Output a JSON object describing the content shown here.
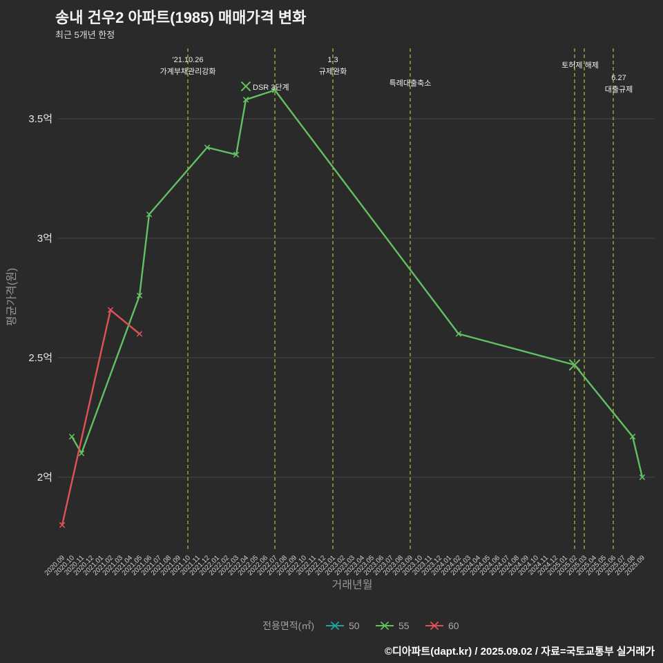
{
  "footer": {
    "credit": "©디아파트(dapt.kr) / 2025.09.02 / 자료=국토교통부 실거래가"
  },
  "chart_data": {
    "type": "line",
    "title": "송내 건우2 아파트(1985) 매매가격 변화",
    "subtitle": "최근 5개년 한정",
    "xlabel": "거래년월",
    "ylabel": "평균가격(원)",
    "ylim": [
      1.72,
      3.75
    ],
    "grid": true,
    "colors": {
      "background": "#2a2a2a",
      "grid": "#454545",
      "vline": "#b3b33c"
    },
    "yticks": [
      {
        "v": 2.0,
        "label": "2억"
      },
      {
        "v": 2.5,
        "label": "2.5억"
      },
      {
        "v": 3.0,
        "label": "3억"
      },
      {
        "v": 3.5,
        "label": "3.5억"
      }
    ],
    "x_categories": [
      "2020.09",
      "2020.10",
      "2020.11",
      "2020.12",
      "2021.01",
      "2021.02",
      "2021.03",
      "2021.04",
      "2021.05",
      "2021.06",
      "2021.07",
      "2021.08",
      "2021.09",
      "2021.10",
      "2021.11",
      "2021.12",
      "2022.01",
      "2022.02",
      "2022.03",
      "2022.04",
      "2022.05",
      "2022.06",
      "2022.07",
      "2022.08",
      "2022.09",
      "2022.10",
      "2022.11",
      "2022.12",
      "2023.01",
      "2023.02",
      "2023.03",
      "2023.04",
      "2023.05",
      "2023.06",
      "2023.07",
      "2023.08",
      "2023.09",
      "2023.10",
      "2023.11",
      "2023.12",
      "2024.01",
      "2024.02",
      "2024.03",
      "2024.04",
      "2024.05",
      "2024.06",
      "2024.07",
      "2024.08",
      "2024.09",
      "2024.10",
      "2024.11",
      "2024.12",
      "2025.01",
      "2025.02",
      "2025.03",
      "2025.04",
      "2025.05",
      "2025.06",
      "2025.07",
      "2025.08",
      "2025.09"
    ],
    "series": [
      {
        "name": "50",
        "color": "#20a39e",
        "points": []
      },
      {
        "name": "55",
        "color": "#62c162",
        "points": [
          [
            "2020.10",
            2.17
          ],
          [
            "2020.11",
            2.1
          ],
          [
            "2021.05",
            2.76
          ],
          [
            "2021.06",
            3.1
          ],
          [
            "2021.12",
            3.38
          ],
          [
            "2022.03",
            3.35
          ],
          [
            "2022.04",
            3.58
          ],
          [
            "2022.07",
            3.62
          ],
          [
            "2024.02",
            2.6
          ],
          [
            "2025.02",
            2.47
          ],
          [
            "2025.08",
            2.17
          ],
          [
            "2025.09",
            2.0
          ]
        ],
        "highlight": [
          [
            "2025.02",
            2.47
          ]
        ]
      },
      {
        "name": "60",
        "color": "#e15258",
        "points": [
          [
            "2020.09",
            1.8
          ],
          [
            "2021.02",
            2.7
          ],
          [
            "2021.05",
            2.6
          ]
        ],
        "highlight": []
      }
    ],
    "vlines": [
      "2021.10",
      "2022.07",
      "2023.01",
      "2023.09",
      "2025.02",
      "2025.03",
      "2025.06"
    ],
    "annotations": [
      {
        "month": "2021.10",
        "y": 90,
        "lines": [
          "'21.10.26",
          "가계부채관리강화"
        ]
      },
      {
        "month": "2022.04",
        "dx": 10,
        "y": 130,
        "anchor": "start",
        "lines": [
          "DSR 3단계"
        ],
        "marker": {
          "month": "2022.04",
          "y": 125,
          "color": "#62c162"
        }
      },
      {
        "month": "2023.01",
        "y": 90,
        "lines": [
          "1.3",
          "규제완화"
        ]
      },
      {
        "month": "2023.09",
        "y": 124,
        "lines": [
          "특례대출축소"
        ]
      },
      {
        "month": "2025.02",
        "dx": 8,
        "y": 98,
        "lines": [
          "토허제 해제"
        ]
      },
      {
        "month": "2025.06",
        "dx": 8,
        "y": 116,
        "lines": [
          "6.27",
          "대출규제"
        ]
      }
    ],
    "legend": {
      "title": "전용면적(㎡)",
      "items": [
        {
          "label": "50",
          "color": "#20a39e"
        },
        {
          "label": "55",
          "color": "#62c162"
        },
        {
          "label": "60",
          "color": "#e15258"
        }
      ]
    }
  }
}
